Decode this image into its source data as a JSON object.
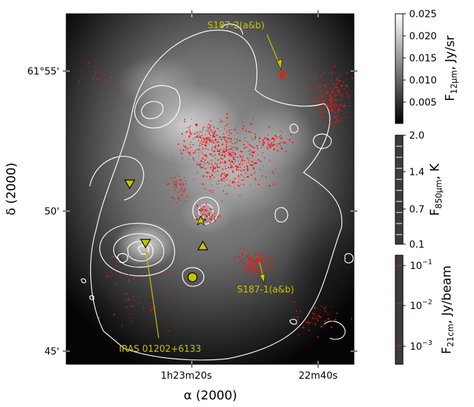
{
  "chart_data": {
    "type": "heatmap",
    "description_axes": {
      "xlabel": "α (2000)",
      "ylabel": "δ (2000)"
    },
    "x_ticks": [
      "1h23m20s",
      "22m40s"
    ],
    "y_ticks": [
      "61°55'",
      "50'",
      "45'"
    ],
    "annotations": [
      {
        "text": "S187-2(a&b)"
      },
      {
        "text": "S187-1(a&b)"
      },
      {
        "text": "IRAS 01202+6133"
      }
    ],
    "colorbars": [
      {
        "label_main": "F",
        "label_sub": "12μm",
        "label_unit": ", Jy/sr",
        "ticks": [
          "0.025",
          "0.020",
          "0.015",
          "0.010",
          "0.005"
        ],
        "range": [
          0.0,
          0.025
        ],
        "scale": "linear",
        "colors": "gray"
      },
      {
        "label_main": "F",
        "label_sub": "850μm",
        "label_unit": ", K",
        "ticks": [
          "2.0",
          "1.4",
          "0.7",
          "0.1"
        ],
        "range": [
          0.1,
          2.0
        ],
        "scale": "linear",
        "line_color": "#ffffff"
      },
      {
        "label_main": "F",
        "label_sub": "21cm",
        "label_unit": ", Jy/beam",
        "ticks": [
          {
            "base": "10",
            "exp": "−1"
          },
          {
            "base": "10",
            "exp": "−2"
          },
          {
            "base": "10",
            "exp": "−3"
          }
        ],
        "scale": "log",
        "line_color": "#ff0000"
      }
    ],
    "markers": [
      {
        "shape": "triangle-down",
        "color": "#c7c400"
      },
      {
        "shape": "triangle-down",
        "color": "#c7c400"
      },
      {
        "shape": "triangle-up",
        "color": "#c7c400"
      },
      {
        "shape": "circle",
        "color": "#c7c400"
      },
      {
        "shape": "triangle-up",
        "color": "#c7c400"
      }
    ],
    "grid": false
  }
}
